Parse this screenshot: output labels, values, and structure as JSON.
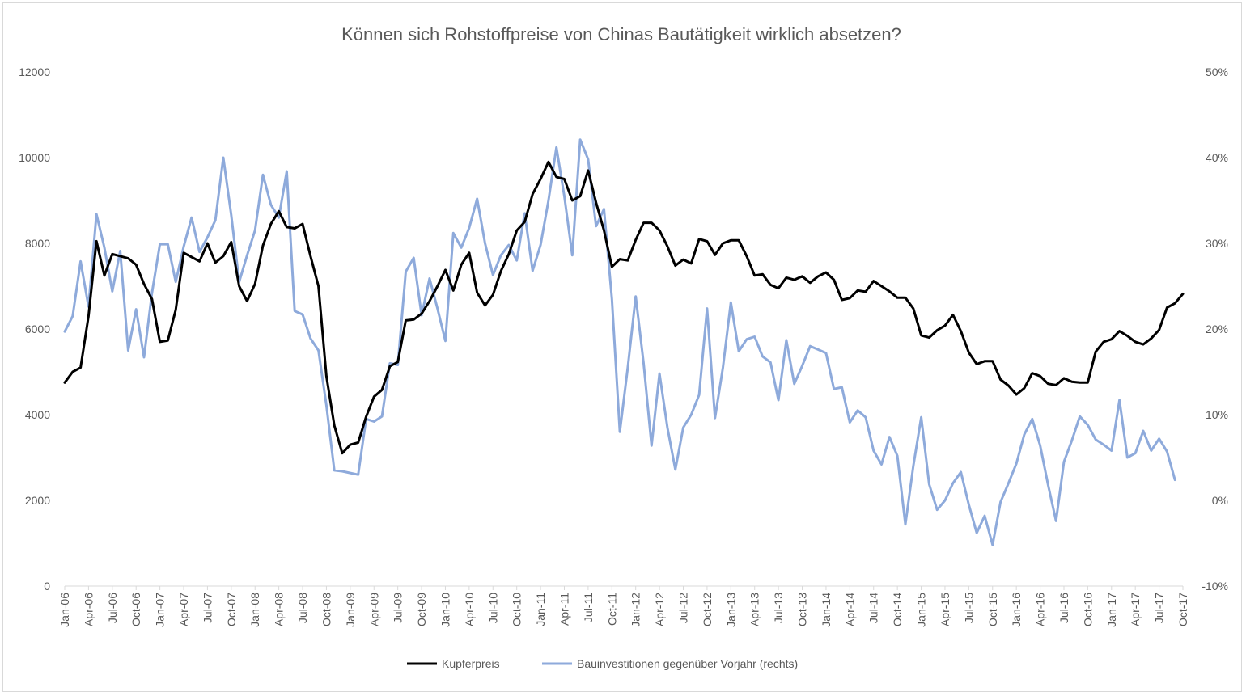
{
  "chart_data": {
    "type": "line",
    "title": "Können sich Rohstoffpreise von Chinas Bautätigkeit wirklich absetzen?",
    "xlabel": "",
    "ylabel": "",
    "x_start": "Jan-06",
    "x_ticks": [
      "Jan-06",
      "Apr-06",
      "Jul-06",
      "Oct-06",
      "Jan-07",
      "Apr-07",
      "Jul-07",
      "Oct-07",
      "Jan-08",
      "Apr-08",
      "Jul-08",
      "Oct-08",
      "Jan-09",
      "Apr-09",
      "Jul-09",
      "Oct-09",
      "Jan-10",
      "Apr-10",
      "Jul-10",
      "Oct-10",
      "Jan-11",
      "Apr-11",
      "Jul-11",
      "Oct-11",
      "Jan-12",
      "Apr-12",
      "Jul-12",
      "Oct-12",
      "Jan-13",
      "Apr-13",
      "Jul-13",
      "Oct-13",
      "Jan-14",
      "Apr-14",
      "Jul-14",
      "Oct-14",
      "Jan-15",
      "Apr-15",
      "Jul-15",
      "Oct-15",
      "Jan-16",
      "Apr-16",
      "Jul-16",
      "Oct-16",
      "Jan-17",
      "Apr-17",
      "Jul-17",
      "Oct-17"
    ],
    "y_left": {
      "min": 0,
      "max": 12000,
      "ticks": [
        "0",
        "2000",
        "4000",
        "6000",
        "8000",
        "10000",
        "12000"
      ]
    },
    "y_right": {
      "min": -0.1,
      "max": 0.5,
      "ticks": [
        "-10%",
        "0%",
        "10%",
        "20%",
        "30%",
        "40%",
        "50%"
      ]
    },
    "grid": false,
    "legend_position": "bottom",
    "series": [
      {
        "name": "Kupferpreis",
        "axis": "left",
        "color": "#000000",
        "values": [
          4750,
          5000,
          5100,
          6300,
          8050,
          7250,
          7750,
          7700,
          7650,
          7500,
          7050,
          6700,
          5700,
          5730,
          6450,
          7780,
          7680,
          7580,
          8000,
          7550,
          7700,
          8030,
          7000,
          6650,
          7050,
          7950,
          8450,
          8750,
          8380,
          8350,
          8450,
          7700,
          7000,
          4900,
          3750,
          3100,
          3300,
          3350,
          3950,
          4420,
          4580,
          5130,
          5230,
          6200,
          6220,
          6360,
          6650,
          7000,
          7380,
          6900,
          7500,
          7780,
          6850,
          6550,
          6800,
          7350,
          7750,
          8300,
          8500,
          9150,
          9500,
          9900,
          9550,
          9500,
          9000,
          9100,
          9700,
          8950,
          8300,
          7450,
          7630,
          7600,
          8080,
          8480,
          8480,
          8300,
          7930,
          7480,
          7620,
          7530,
          8100,
          8050,
          7730,
          8000,
          8070,
          8070,
          7700,
          7250,
          7280,
          7030,
          6950,
          7200,
          7150,
          7230,
          7080,
          7230,
          7320,
          7150,
          6680,
          6720,
          6900,
          6870,
          7120,
          7000,
          6880,
          6730,
          6730,
          6480,
          5850,
          5800,
          5970,
          6080,
          6330,
          5950,
          5450,
          5180,
          5250,
          5250,
          4820,
          4680,
          4470,
          4620,
          4970,
          4900,
          4720,
          4690,
          4850,
          4770,
          4750,
          4750,
          5470,
          5700,
          5760,
          5950,
          5840,
          5700,
          5640,
          5780,
          5980,
          6500,
          6600,
          6820
        ]
      },
      {
        "name": "Bauinvestitionen gegenüber Vorjahr (rechts)",
        "axis": "right",
        "color": "#8eaadb",
        "values": [
          0.197,
          0.215,
          0.279,
          0.226,
          0.334,
          0.295,
          0.244,
          0.291,
          0.175,
          0.223,
          0.167,
          0.242,
          0.299,
          0.299,
          0.255,
          0.296,
          0.33,
          0.29,
          0.307,
          0.327,
          0.4,
          0.333,
          0.255,
          0.286,
          0.315,
          0.38,
          0.345,
          0.33,
          0.384,
          0.221,
          0.217,
          0.189,
          0.175,
          0.111,
          0.035,
          0.034,
          0.032,
          0.03,
          0.095,
          0.092,
          0.098,
          0.16,
          0.158,
          0.267,
          0.283,
          0.216,
          0.259,
          0.224,
          0.186,
          0.312,
          0.295,
          0.318,
          0.352,
          0.3,
          0.263,
          0.286,
          0.298,
          0.28,
          0.335,
          0.268,
          0.298,
          0.35,
          0.412,
          0.355,
          0.286,
          0.421,
          0.398,
          0.32,
          0.34,
          0.235,
          0.08,
          0.155,
          0.238,
          0.16,
          0.064,
          0.148,
          0.085,
          0.036,
          0.085,
          0.1,
          0.123,
          0.224,
          0.096,
          0.155,
          0.231,
          0.174,
          0.188,
          0.191,
          0.168,
          0.161,
          0.117,
          0.187,
          0.136,
          0.157,
          0.18,
          0.176,
          0.172,
          0.13,
          0.132,
          0.091,
          0.105,
          0.097,
          0.058,
          0.042,
          0.074,
          0.052,
          -0.028,
          0.04,
          0.097,
          0.019,
          -0.011,
          0.0,
          0.02,
          0.033,
          -0.005,
          -0.038,
          -0.018,
          -0.052,
          -0.002,
          0.02,
          0.043,
          0.077,
          0.095,
          0.064,
          0.018,
          -0.024,
          0.045,
          0.07,
          0.098,
          0.088,
          0.071,
          0.065,
          0.058,
          0.117,
          0.05,
          0.055,
          0.081,
          0.058,
          0.072,
          0.057,
          0.024
        ]
      }
    ]
  }
}
